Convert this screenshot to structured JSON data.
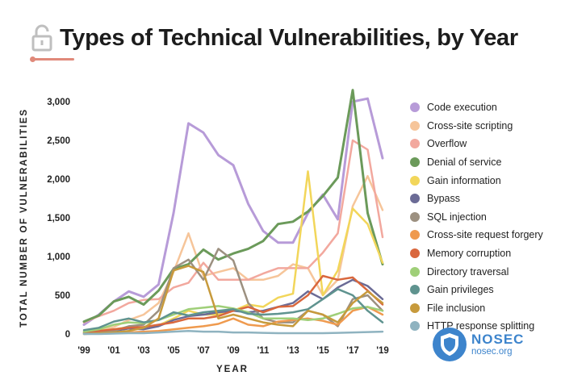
{
  "title": "Types of Technical Vulnerabilities, by Year",
  "watermark": {
    "name": "NOSEC",
    "site": "nosec.org"
  },
  "chart_data": {
    "type": "line",
    "title": "Types of Technical Vulnerabilities, by Year",
    "xlabel": "YEAR",
    "ylabel": "TOTAL NUMBER OF VULNERABILITIES",
    "x": [
      1999,
      2000,
      2001,
      2002,
      2003,
      2004,
      2005,
      2006,
      2007,
      2008,
      2009,
      2010,
      2011,
      2012,
      2013,
      2014,
      2015,
      2016,
      2017,
      2018,
      2019
    ],
    "x_tick_labels": [
      "'99",
      "'01",
      "'03",
      "'05",
      "'07",
      "'09",
      "'11",
      "'13",
      "'15",
      "'17",
      "'19"
    ],
    "x_tick_values": [
      1999,
      2001,
      2003,
      2005,
      2007,
      2009,
      2011,
      2013,
      2015,
      2017,
      2019
    ],
    "y_tick_labels": [
      "0",
      "500",
      "1,000",
      "1,500",
      "2,000",
      "2,500",
      "3,000"
    ],
    "y_tick_values": [
      0,
      500,
      1000,
      1500,
      2000,
      2500,
      3000
    ],
    "ylim": [
      0,
      3000
    ],
    "xlim": [
      1999,
      2019
    ],
    "legend_position": "right",
    "series": [
      {
        "name": "Code execution",
        "color": "#b79bd8",
        "values": [
          120,
          250,
          420,
          550,
          480,
          640,
          1560,
          2720,
          2600,
          2310,
          2180,
          1680,
          1330,
          1180,
          1180,
          1560,
          1800,
          1480,
          3000,
          3040,
          2270
        ]
      },
      {
        "name": "Cross-site scripting",
        "color": "#f6c59a",
        "values": [
          20,
          40,
          90,
          180,
          250,
          400,
          800,
          1300,
          750,
          800,
          850,
          700,
          700,
          750,
          900,
          850,
          500,
          700,
          1650,
          2040,
          1600
        ]
      },
      {
        "name": "Overflow",
        "color": "#f2a89e",
        "values": [
          150,
          230,
          300,
          400,
          440,
          450,
          600,
          660,
          920,
          700,
          700,
          700,
          780,
          850,
          850,
          850,
          1050,
          1300,
          2500,
          2380,
          1250
        ]
      },
      {
        "name": "Denial of service",
        "color": "#6b9a5a",
        "values": [
          160,
          240,
          420,
          480,
          380,
          560,
          840,
          900,
          1090,
          960,
          1040,
          1100,
          1200,
          1420,
          1450,
          1580,
          1780,
          2020,
          3150,
          1560,
          900
        ]
      },
      {
        "name": "Gain information",
        "color": "#f2d65a",
        "values": [
          20,
          40,
          60,
          90,
          80,
          110,
          200,
          300,
          250,
          250,
          300,
          380,
          350,
          470,
          520,
          2100,
          500,
          820,
          1620,
          1420,
          920
        ]
      },
      {
        "name": "Bypass",
        "color": "#6b6b96",
        "values": [
          10,
          20,
          40,
          70,
          60,
          100,
          180,
          230,
          250,
          280,
          300,
          280,
          300,
          350,
          400,
          550,
          450,
          600,
          700,
          620,
          450
        ]
      },
      {
        "name": "SQL injection",
        "color": "#9c9080",
        "values": [
          10,
          20,
          40,
          100,
          120,
          300,
          850,
          960,
          700,
          1100,
          950,
          400,
          200,
          150,
          150,
          300,
          250,
          100,
          450,
          500,
          300
        ]
      },
      {
        "name": "Cross-site request forgery",
        "color": "#ef9a4e",
        "values": [
          0,
          5,
          10,
          20,
          30,
          40,
          60,
          80,
          100,
          130,
          200,
          120,
          100,
          160,
          180,
          200,
          170,
          120,
          300,
          350,
          250
        ]
      },
      {
        "name": "Memory corruption",
        "color": "#d9673d",
        "values": [
          30,
          40,
          60,
          80,
          90,
          120,
          150,
          200,
          200,
          230,
          300,
          350,
          280,
          350,
          360,
          500,
          750,
          700,
          730,
          560,
          380
        ]
      },
      {
        "name": "Directory traversal",
        "color": "#9fcf78",
        "values": [
          30,
          60,
          120,
          150,
          140,
          180,
          250,
          320,
          340,
          360,
          330,
          280,
          200,
          200,
          200,
          180,
          200,
          260,
          330,
          350,
          300
        ]
      },
      {
        "name": "Gain privileges",
        "color": "#5f938f",
        "values": [
          50,
          80,
          160,
          200,
          150,
          180,
          280,
          240,
          280,
          300,
          320,
          260,
          250,
          260,
          280,
          320,
          450,
          580,
          500,
          300,
          150
        ]
      },
      {
        "name": "File inclusion",
        "color": "#c79a3c",
        "values": [
          0,
          10,
          20,
          40,
          80,
          200,
          820,
          880,
          800,
          200,
          250,
          200,
          150,
          120,
          100,
          300,
          250,
          150,
          400,
          550,
          400
        ]
      },
      {
        "name": "HTTP response splitting",
        "color": "#8fb3c0",
        "values": [
          0,
          0,
          5,
          10,
          10,
          20,
          30,
          40,
          30,
          30,
          20,
          20,
          15,
          10,
          10,
          10,
          10,
          15,
          20,
          25,
          30
        ]
      }
    ]
  }
}
